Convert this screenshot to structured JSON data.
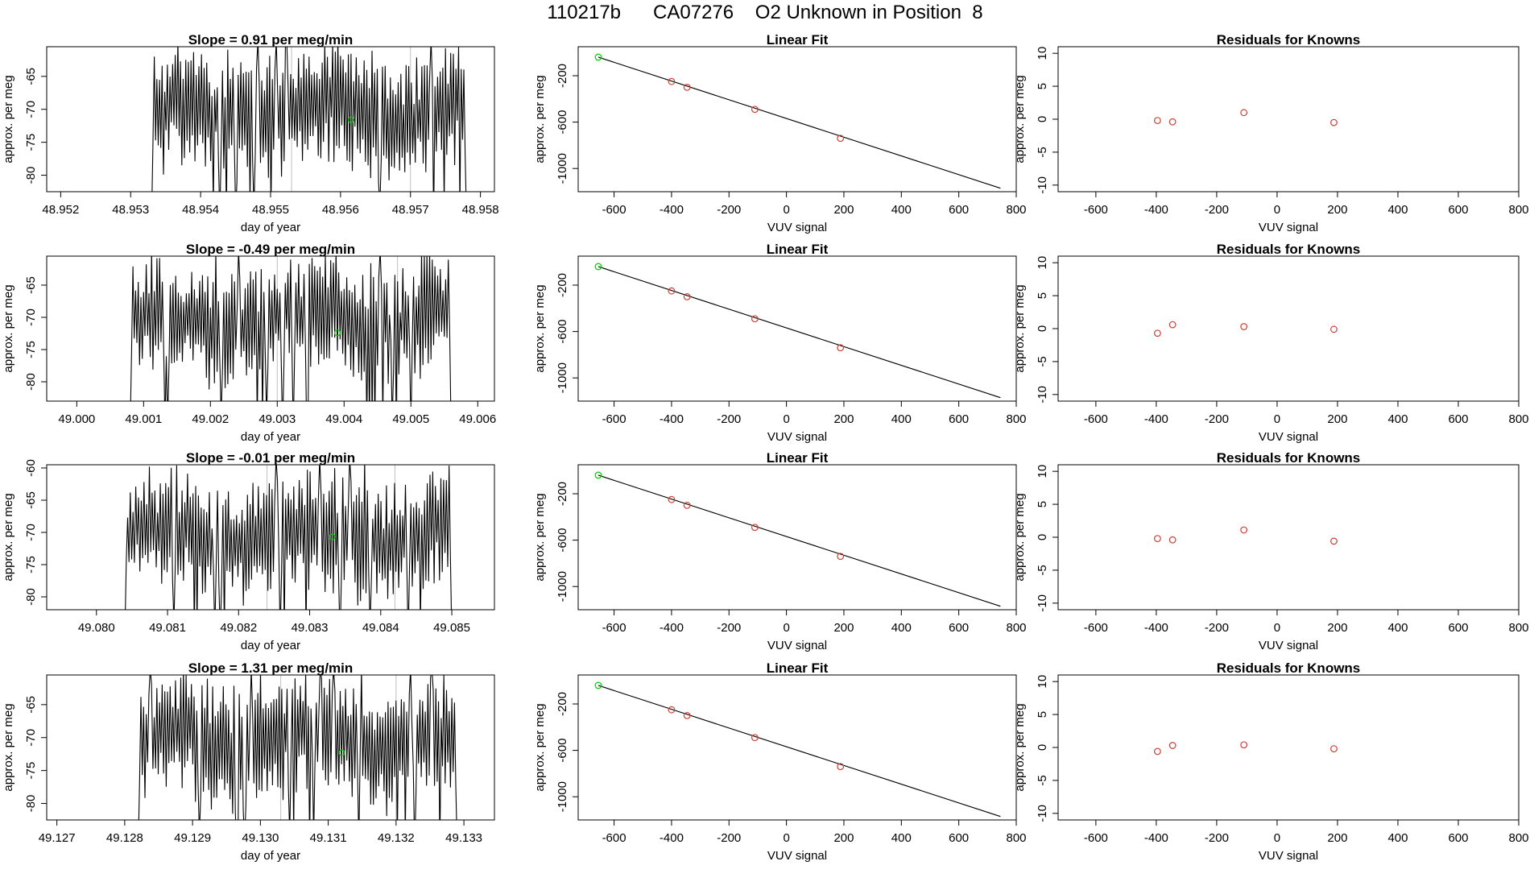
{
  "figure": {
    "title": "110217b      CA07276    O2 Unknown in Position  8"
  },
  "colors": {
    "axes": "#000000",
    "known": "#cd3f33",
    "unknown": "#00cc00",
    "gridline": "#bfbfbf"
  },
  "chart_data": [
    {
      "panel": "row1-trace",
      "type": "line",
      "title": "Slope =  0.91  per meg/min",
      "xlabel": "day of year",
      "ylabel": "approx. per meg",
      "xlim": [
        48.9518,
        48.9582
      ],
      "ylim": [
        -82.5,
        -60.5
      ],
      "xticks": [
        "48.952",
        "48.953",
        "48.954",
        "48.955",
        "48.956",
        "48.957",
        "48.958"
      ],
      "yticks": [
        "-80",
        "-75",
        "-70",
        "-65"
      ],
      "vlines": [
        48.9553,
        48.957
      ],
      "start": 48.9533,
      "end": 48.9578,
      "seed": 11,
      "highlight": {
        "x": 48.95615,
        "y": -71.6
      }
    },
    {
      "panel": "row1-fit",
      "type": "scatter",
      "title": "Linear Fit",
      "xlabel": "VUV signal",
      "ylabel": "approx. per meg",
      "xlim": [
        -725,
        800
      ],
      "ylim": [
        -1200,
        50
      ],
      "xticks": [
        "-600",
        "-400",
        "-200",
        "0",
        "200",
        "400",
        "600",
        "800"
      ],
      "yticks": [
        "-200",
        "-600",
        "-1000"
      ],
      "knowns": [
        [
          -400,
          -250
        ],
        [
          -346,
          -300
        ],
        [
          -110,
          -490
        ],
        [
          188,
          -740
        ]
      ],
      "unknown": [
        -655,
        -40
      ],
      "fit_line": [
        [
          -655,
          -40
        ],
        [
          745,
          -1170
        ]
      ]
    },
    {
      "panel": "row1-residuals",
      "type": "scatter",
      "title": "Residuals for Knowns",
      "xlabel": "VUV signal",
      "ylabel": "approx. per meg",
      "xlim": [
        -725,
        800
      ],
      "ylim": [
        -11,
        11
      ],
      "xticks": [
        "-600",
        "-400",
        "-200",
        "0",
        "200",
        "400",
        "600",
        "800"
      ],
      "yticks": [
        "-10",
        "-5",
        "0",
        "5",
        "10"
      ],
      "points": [
        [
          -396,
          -0.2
        ],
        [
          -346,
          -0.4
        ],
        [
          -110,
          1.0
        ],
        [
          188,
          -0.5
        ]
      ]
    },
    {
      "panel": "row2-trace",
      "type": "line",
      "title": "Slope =  -0.49  per meg/min",
      "xlabel": "day of year",
      "ylabel": "approx. per meg",
      "xlim": [
        48.99955,
        49.00625
      ],
      "ylim": [
        -83,
        -60.5
      ],
      "xticks": [
        "49.000",
        "49.001",
        "49.002",
        "49.003",
        "49.004",
        "49.005",
        "49.006"
      ],
      "yticks": [
        "-80",
        "-75",
        "-70",
        "-65"
      ],
      "vlines": [
        49.003,
        49.0048
      ],
      "start": 49.0008,
      "end": 49.0056,
      "seed": 23,
      "highlight": {
        "x": 49.0039,
        "y": -72.4
      }
    },
    {
      "panel": "row2-fit",
      "type": "scatter",
      "title": "Linear Fit",
      "xlabel": "VUV signal",
      "ylabel": "approx. per meg",
      "xlim": [
        -725,
        800
      ],
      "ylim": [
        -1200,
        50
      ],
      "xticks": [
        "-600",
        "-400",
        "-200",
        "0",
        "200",
        "400",
        "600",
        "800"
      ],
      "yticks": [
        "-200",
        "-600",
        "-1000"
      ],
      "knowns": [
        [
          -400,
          -250
        ],
        [
          -346,
          -300
        ],
        [
          -110,
          -490
        ],
        [
          188,
          -740
        ]
      ],
      "unknown": [
        -655,
        -40
      ],
      "fit_line": [
        [
          -655,
          -40
        ],
        [
          745,
          -1170
        ]
      ]
    },
    {
      "panel": "row2-residuals",
      "type": "scatter",
      "title": "Residuals for Knowns",
      "xlabel": "VUV signal",
      "ylabel": "approx. per meg",
      "xlim": [
        -725,
        800
      ],
      "ylim": [
        -11,
        11
      ],
      "xticks": [
        "-600",
        "-400",
        "-200",
        "0",
        "200",
        "400",
        "600",
        "800"
      ],
      "yticks": [
        "-10",
        "-5",
        "0",
        "5",
        "10"
      ],
      "points": [
        [
          -396,
          -0.7
        ],
        [
          -346,
          0.6
        ],
        [
          -110,
          0.3
        ],
        [
          188,
          -0.1
        ]
      ]
    },
    {
      "panel": "row3-trace",
      "type": "line",
      "title": "Slope =  -0.01  per meg/min",
      "xlabel": "day of year",
      "ylabel": "approx. per meg",
      "xlim": [
        49.0793,
        49.0856
      ],
      "ylim": [
        -82,
        -59.5
      ],
      "xticks": [
        "49.080",
        "49.081",
        "49.082",
        "49.083",
        "49.084",
        "49.085"
      ],
      "yticks": [
        "-80",
        "-75",
        "-70",
        "-65",
        "-60"
      ],
      "vlines": [
        49.0824,
        49.0842
      ],
      "start": 49.0804,
      "end": 49.085,
      "seed": 37,
      "highlight": {
        "x": 49.08332,
        "y": -70.7
      }
    },
    {
      "panel": "row3-fit",
      "type": "scatter",
      "title": "Linear Fit",
      "xlabel": "VUV signal",
      "ylabel": "approx. per meg",
      "xlim": [
        -725,
        800
      ],
      "ylim": [
        -1200,
        50
      ],
      "xticks": [
        "-600",
        "-400",
        "-200",
        "0",
        "200",
        "400",
        "600",
        "800"
      ],
      "yticks": [
        "-200",
        "-600",
        "-1000"
      ],
      "knowns": [
        [
          -400,
          -250
        ],
        [
          -346,
          -300
        ],
        [
          -110,
          -490
        ],
        [
          188,
          -740
        ]
      ],
      "unknown": [
        -655,
        -40
      ],
      "fit_line": [
        [
          -655,
          -40
        ],
        [
          745,
          -1170
        ]
      ]
    },
    {
      "panel": "row3-residuals",
      "type": "scatter",
      "title": "Residuals for Knowns",
      "xlabel": "VUV signal",
      "ylabel": "approx. per meg",
      "xlim": [
        -725,
        800
      ],
      "ylim": [
        -11,
        11
      ],
      "xticks": [
        "-600",
        "-400",
        "-200",
        "0",
        "200",
        "400",
        "600",
        "800"
      ],
      "yticks": [
        "-10",
        "-5",
        "0",
        "5",
        "10"
      ],
      "points": [
        [
          -396,
          -0.2
        ],
        [
          -346,
          -0.4
        ],
        [
          -110,
          1.1
        ],
        [
          188,
          -0.6
        ]
      ]
    },
    {
      "panel": "row4-trace",
      "type": "line",
      "title": "Slope =  1.31  per meg/min",
      "xlabel": "day of year",
      "ylabel": "approx. per meg",
      "xlim": [
        49.12685,
        49.13345
      ],
      "ylim": [
        -82.5,
        -60.5
      ],
      "xticks": [
        "49.127",
        "49.128",
        "49.129",
        "49.130",
        "49.131",
        "49.132",
        "49.133"
      ],
      "yticks": [
        "-80",
        "-75",
        "-70",
        "-65"
      ],
      "vlines": [
        49.1303,
        49.132
      ],
      "start": 49.1282,
      "end": 49.1329,
      "seed": 53,
      "highlight": {
        "x": 49.1312,
        "y": -72.3
      }
    },
    {
      "panel": "row4-fit",
      "type": "scatter",
      "title": "Linear Fit",
      "xlabel": "VUV signal",
      "ylabel": "approx. per meg",
      "xlim": [
        -725,
        800
      ],
      "ylim": [
        -1200,
        50
      ],
      "xticks": [
        "-600",
        "-400",
        "-200",
        "0",
        "200",
        "400",
        "600",
        "800"
      ],
      "yticks": [
        "-200",
        "-600",
        "-1000"
      ],
      "knowns": [
        [
          -400,
          -250
        ],
        [
          -346,
          -300
        ],
        [
          -110,
          -490
        ],
        [
          188,
          -740
        ]
      ],
      "unknown": [
        -655,
        -40
      ],
      "fit_line": [
        [
          -655,
          -40
        ],
        [
          745,
          -1170
        ]
      ]
    },
    {
      "panel": "row4-residuals",
      "type": "scatter",
      "title": "Residuals for Knowns",
      "xlabel": "VUV signal",
      "ylabel": "approx. per meg",
      "xlim": [
        -725,
        800
      ],
      "ylim": [
        -11,
        11
      ],
      "xticks": [
        "-600",
        "-400",
        "-200",
        "0",
        "200",
        "400",
        "600",
        "800"
      ],
      "yticks": [
        "-10",
        "-5",
        "0",
        "5",
        "10"
      ],
      "points": [
        [
          -396,
          -0.6
        ],
        [
          -346,
          0.3
        ],
        [
          -110,
          0.4
        ],
        [
          188,
          -0.2
        ]
      ]
    }
  ]
}
